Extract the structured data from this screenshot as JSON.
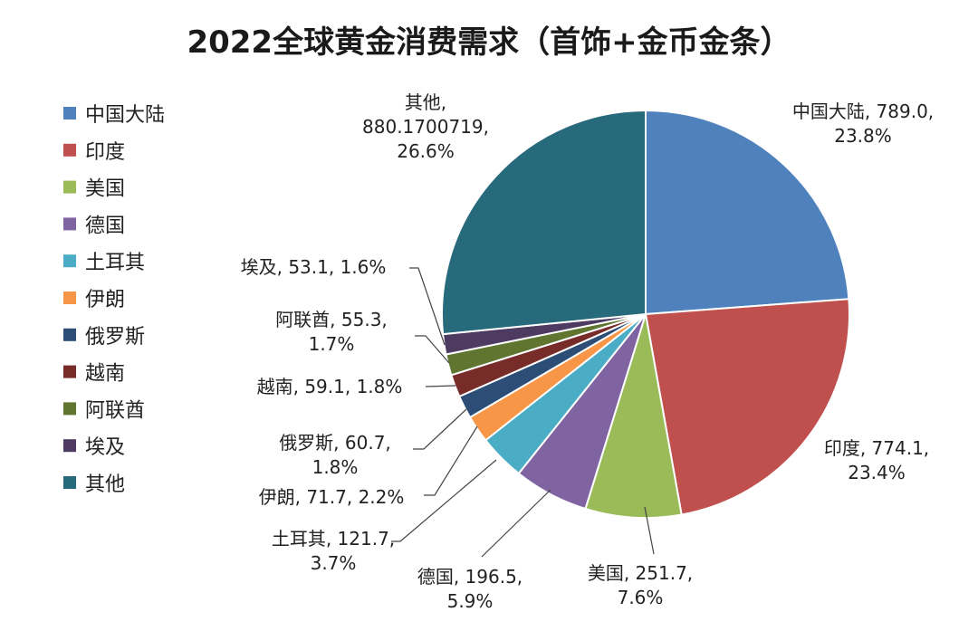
{
  "chart_data": {
    "type": "pie",
    "title": "2022全球黄金消费需求（首饰+金币金条）",
    "legend_position": "left",
    "slices": [
      {
        "name": "中国大陆",
        "value": 789.0,
        "percent": "23.8%",
        "value_text": "789.0",
        "color": "#4F81BD"
      },
      {
        "name": "印度",
        "value": 774.1,
        "percent": "23.4%",
        "value_text": "774.1",
        "color": "#C0504D"
      },
      {
        "name": "美国",
        "value": 251.7,
        "percent": "7.6%",
        "value_text": "251.7",
        "color": "#9BBB59"
      },
      {
        "name": "德国",
        "value": 196.5,
        "percent": "5.9%",
        "value_text": "196.5",
        "color": "#8064A2"
      },
      {
        "name": "土耳其",
        "value": 121.7,
        "percent": "3.7%",
        "value_text": "121.7",
        "color": "#4BACC6"
      },
      {
        "name": "伊朗",
        "value": 71.7,
        "percent": "2.2%",
        "value_text": "71.7",
        "color": "#F79646"
      },
      {
        "name": "俄罗斯",
        "value": 60.7,
        "percent": "1.8%",
        "value_text": "60.7",
        "color": "#2C4D75"
      },
      {
        "name": "越南",
        "value": 59.1,
        "percent": "1.8%",
        "value_text": "59.1",
        "color": "#772C2A"
      },
      {
        "name": "阿联酋",
        "value": 55.3,
        "percent": "1.7%",
        "value_text": "55.3",
        "color": "#5F7530"
      },
      {
        "name": "埃及",
        "value": 53.1,
        "percent": "1.6%",
        "value_text": "53.1",
        "color": "#4D3B62"
      },
      {
        "name": "其他",
        "value": 880.1700719,
        "percent": "26.6%",
        "value_text": "880.1700719",
        "color": "#276A7C"
      }
    ]
  }
}
